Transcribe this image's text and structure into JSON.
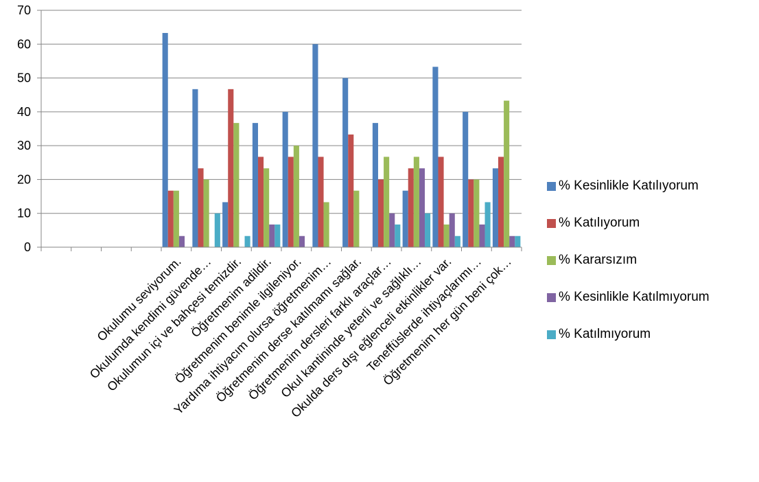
{
  "chart_data": {
    "type": "bar",
    "ylim": [
      0,
      70
    ],
    "yticks": [
      0,
      10,
      20,
      30,
      40,
      50,
      60,
      70
    ],
    "grid": true,
    "legend_position": "right",
    "categories": [
      "",
      "",
      "",
      "",
      "Okulumu seviyorum.",
      "Okulumda kendimi güvende…",
      "Okulumun içi ve bahçesi temizdir.",
      "Öğretmenim adildir.",
      "Öğretmenim benimle ilgileniyor.",
      "Yardıma ihtiyacım olursa öğretmenim…",
      "Öğretmenim derse katılmamı sağlar.",
      "Öğretmenim dersleri farklı araçlar…",
      "Okul kantininde yeterli ve sağlıklı…",
      "Okulda ders dışı eğlenceli etkinlikler var.",
      "Teneffüslerde ihtiyaçlarımı…",
      "Öğretmenim her gün beni çok…"
    ],
    "series": [
      {
        "name": "% Kesinlikle Katılıyorum",
        "color": "#4f81bd",
        "values": [
          null,
          null,
          null,
          null,
          63.3,
          46.7,
          13.3,
          36.7,
          40,
          60,
          50,
          36.7,
          16.7,
          53.3,
          40,
          23.3
        ]
      },
      {
        "name": "% Katılıyorum",
        "color": "#c0504d",
        "values": [
          null,
          null,
          null,
          null,
          16.7,
          23.3,
          46.7,
          26.7,
          26.7,
          26.7,
          33.3,
          20,
          23.3,
          26.7,
          20,
          26.7
        ]
      },
      {
        "name": "% Kararsızım",
        "color": "#9bbb59",
        "values": [
          null,
          null,
          null,
          null,
          16.7,
          20,
          36.7,
          23.3,
          30,
          13.3,
          16.7,
          26.7,
          26.7,
          6.7,
          20,
          43.3
        ]
      },
      {
        "name": "% Kesinlikle Katılmıyorum",
        "color": "#8064a2",
        "values": [
          null,
          null,
          null,
          null,
          3.3,
          0,
          0,
          6.7,
          3.3,
          0,
          0,
          10,
          23.3,
          10,
          6.7,
          3.3
        ]
      },
      {
        "name": "% Katılmıyorum",
        "color": "#4bacc6",
        "values": [
          null,
          null,
          null,
          null,
          0,
          10,
          3.3,
          6.7,
          0,
          0,
          0,
          6.7,
          10,
          3.3,
          13.3,
          3.3
        ]
      }
    ]
  }
}
